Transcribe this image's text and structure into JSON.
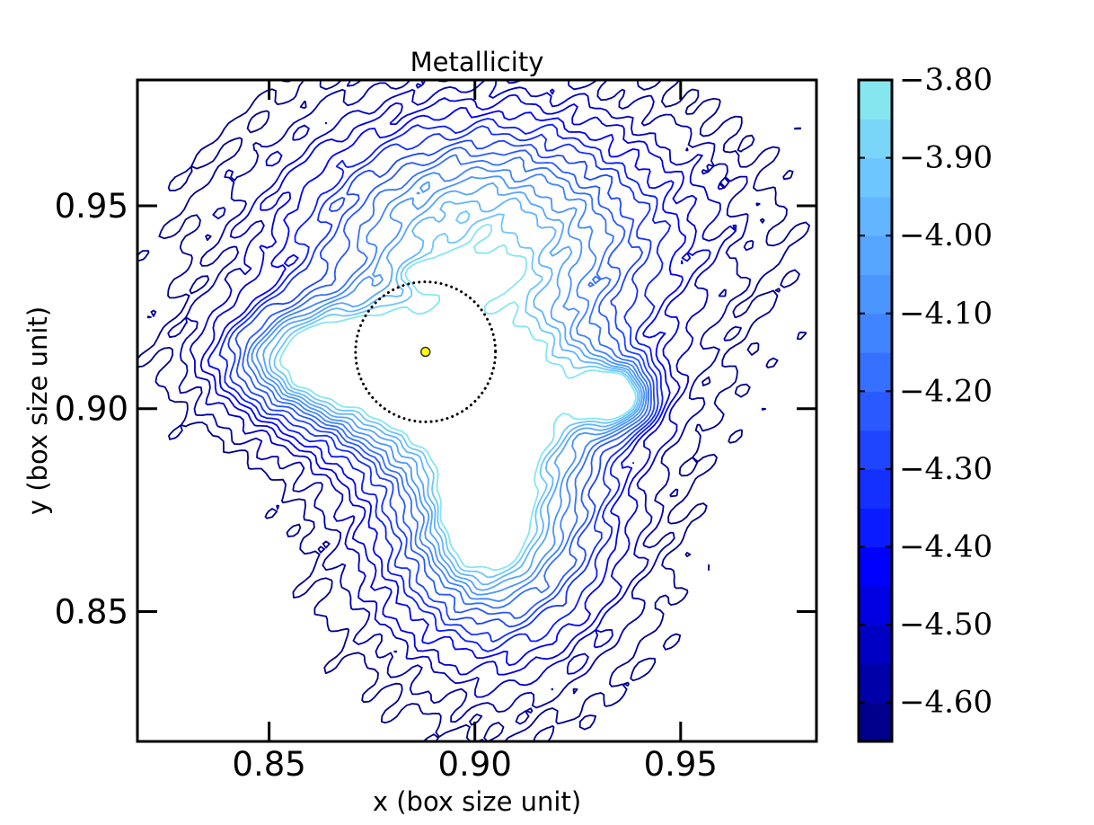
{
  "chart_data": {
    "type": "contour",
    "title": "Metallicity",
    "xlabel": "x (box size unit)",
    "ylabel": "y (box size unit)",
    "xlim": [
      0.818,
      0.983
    ],
    "ylim": [
      0.818,
      0.981
    ],
    "x_ticks": [
      0.85,
      0.9,
      0.95
    ],
    "x_tick_labels": [
      "0.85",
      "0.90",
      "0.95"
    ],
    "y_ticks": [
      0.85,
      0.9,
      0.95
    ],
    "y_tick_labels": [
      "0.85",
      "0.90",
      "0.95"
    ],
    "colorbar": {
      "range": [
        -4.65,
        -3.8
      ],
      "ticks": [
        -3.8,
        -3.9,
        -4.0,
        -4.1,
        -4.2,
        -4.3,
        -4.4,
        -4.5,
        -4.6
      ],
      "tick_labels": [
        "−3.80",
        "−3.90",
        "−4.00",
        "−4.10",
        "−4.20",
        "−4.30",
        "−4.40",
        "−4.50",
        "−4.60"
      ],
      "band_colors": [
        "#00008c",
        "#0000a8",
        "#0000c4",
        "#0000e0",
        "#0000ff",
        "#0a1cff",
        "#1430ff",
        "#1f45ff",
        "#2a5aff",
        "#3570ff",
        "#4085ff",
        "#4b95ff",
        "#56a5ff",
        "#62b5ff",
        "#6ec6ff",
        "#7ad6f8",
        "#86e6f0"
      ]
    },
    "contour_regions": [
      {
        "name": "upper-lobe",
        "center": [
          0.902,
          0.942
        ],
        "radius": [
          0.043,
          0.028
        ]
      },
      {
        "name": "west-lobe",
        "center": [
          0.862,
          0.913
        ],
        "radius": [
          0.021,
          0.012
        ]
      },
      {
        "name": "east-protrusion",
        "center": [
          0.934,
          0.903
        ],
        "radius": [
          0.008,
          0.007
        ]
      },
      {
        "name": "middle-body",
        "center": [
          0.893,
          0.905
        ],
        "radius": [
          0.035,
          0.016
        ]
      },
      {
        "name": "lower-lobe",
        "center": [
          0.905,
          0.875
        ],
        "radius": [
          0.027,
          0.033
        ]
      },
      {
        "name": "bright-peak-upper",
        "center": [
          0.897,
          0.933
        ],
        "value": -3.8
      },
      {
        "name": "bright-peak-lower",
        "center": [
          0.902,
          0.875
        ],
        "value": -3.95
      }
    ],
    "circle_marker": {
      "center": [
        0.888,
        0.914
      ],
      "radius": 0.017
    },
    "center_marker": {
      "center": [
        0.888,
        0.914
      ],
      "color": "#ffff00"
    }
  }
}
